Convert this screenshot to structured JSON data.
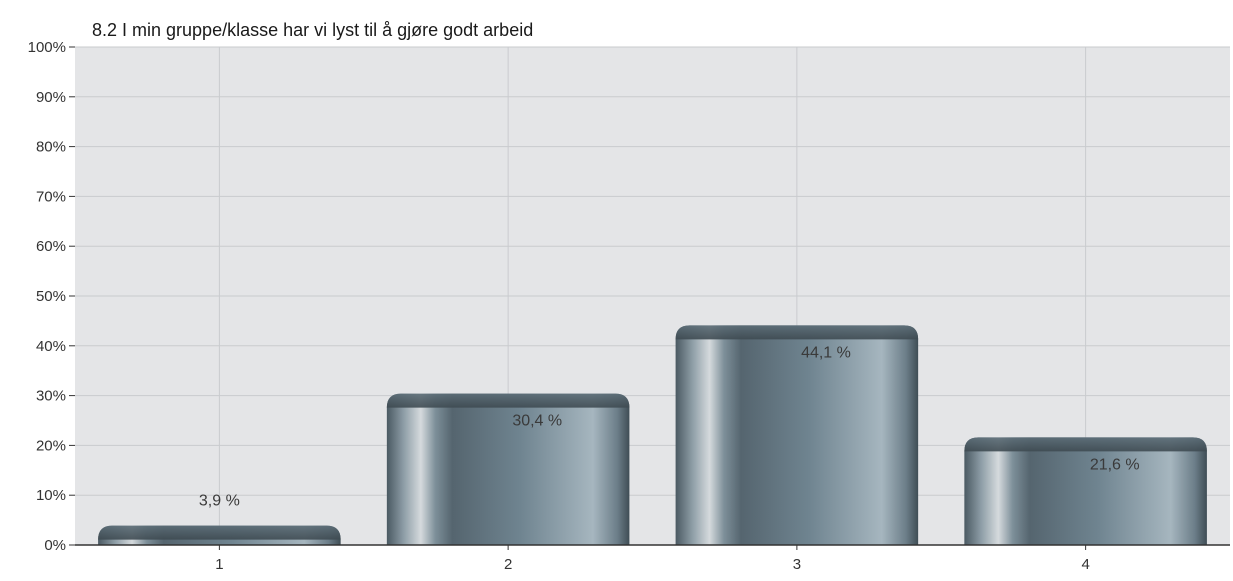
{
  "chart_data": {
    "type": "bar",
    "title": "8.2 I min gruppe/klasse har vi lyst til å gjøre godt arbeid",
    "xlabel": "",
    "ylabel": "",
    "categories": [
      "1",
      "2",
      "3",
      "4"
    ],
    "values": [
      3.9,
      30.4,
      44.1,
      21.6
    ],
    "data_labels": [
      "3,9 %",
      "30,4 %",
      "44,1 %",
      "21,6 %"
    ],
    "y_ticks": [
      "0%",
      "10%",
      "20%",
      "30%",
      "40%",
      "50%",
      "60%",
      "70%",
      "80%",
      "90%",
      "100%"
    ],
    "ylim": [
      0,
      100
    ],
    "grid": true,
    "legend": "none",
    "colors": {
      "plot_background": "#e4e5e7",
      "grid_line": "#c9cbce",
      "bar_dark": "#4a5962",
      "bar_mid": "#6f8490",
      "bar_light": "#a6b6bf",
      "bar_highlight": "#d5dadd",
      "axis_line": "#333333"
    }
  }
}
